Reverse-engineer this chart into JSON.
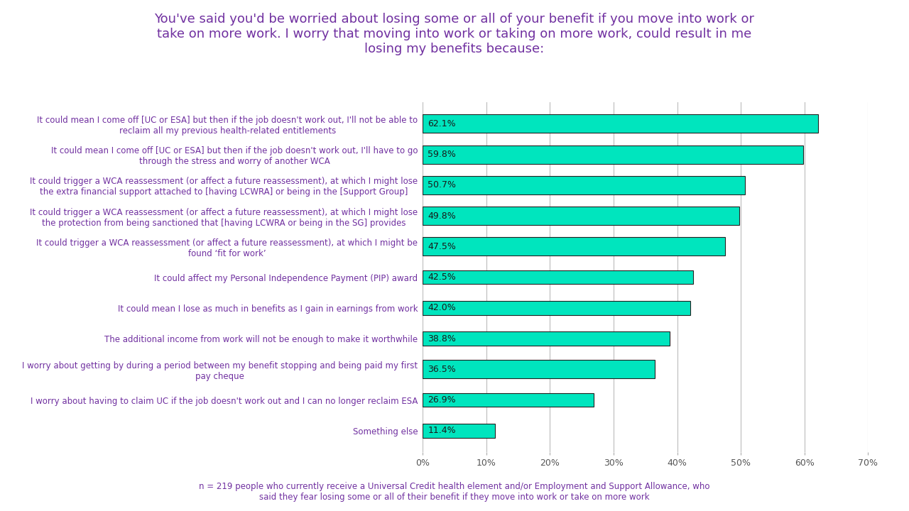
{
  "title": "You've said you'd be worried about losing some or all of your benefit if you move into work or\ntake on more work. I worry that moving into work or taking on more work, could result in me\nlosing my benefits because:",
  "title_color": "#7030A0",
  "title_fontsize": 13,
  "bar_color": "#00E5BE",
  "bar_edgecolor": "#222222",
  "bar_edgewidth": 0.8,
  "label_color": "#7030A0",
  "value_color": "#1A1A1A",
  "footnote_color": "#7030A0",
  "footnote": "n = 219 people who currently receive a Universal Credit health element and/or Employment and Support Allowance, who\nsaid they fear losing some or all of their benefit if they move into work or take on more work",
  "categories": [
    "It could mean I come off [UC or ESA] but then if the job doesn't work out, I'll not be able to\nreclaim all my previous health-related entitlements",
    "It could mean I come off [UC or ESA] but then if the job doesn't work out, I'll have to go\nthrough the stress and worry of another WCA",
    "It could trigger a WCA reassessment (or affect a future reassessment), at which I might lose\nthe extra financial support attached to [having LCWRA] or being in the [Support Group]",
    "It could trigger a WCA reassessment (or affect a future reassessment), at which I might lose\nthe protection from being sanctioned that [having LCWRA or being in the SG] provides",
    "It could trigger a WCA reassessment (or affect a future reassessment), at which I might be\nfound ‘fit for work’",
    "It could affect my Personal Independence Payment (PIP) award",
    "It could mean I lose as much in benefits as I gain in earnings from work",
    "The additional income from work will not be enough to make it worthwhile",
    "I worry about getting by during a period between my benefit stopping and being paid my first\npay cheque",
    "I worry about having to claim UC if the job doesn't work out and I can no longer reclaim ESA",
    "Something else"
  ],
  "values": [
    62.1,
    59.8,
    50.7,
    49.8,
    47.5,
    42.5,
    42.0,
    38.8,
    36.5,
    26.9,
    11.4
  ],
  "xlim": [
    0,
    70
  ],
  "xticks": [
    0,
    10,
    20,
    30,
    40,
    50,
    60,
    70
  ],
  "xtick_labels": [
    "0%",
    "10%",
    "20%",
    "30%",
    "40%",
    "50%",
    "60%",
    "70%"
  ],
  "background_color": "#FFFFFF",
  "grid_color": "#BBBBBB"
}
